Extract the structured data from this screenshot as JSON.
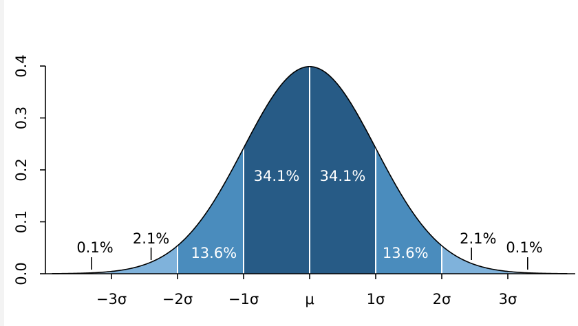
{
  "chart_data": {
    "type": "area",
    "title": "",
    "xlabel": "",
    "ylabel": "",
    "xlim": [
      -3.9,
      3.9
    ],
    "ylim": [
      0,
      0.4
    ],
    "y_ticks": [
      "0.0",
      "0.1",
      "0.2",
      "0.3",
      "0.4"
    ],
    "y_tick_values": [
      0.0,
      0.1,
      0.2,
      0.3,
      0.4
    ],
    "x_ticks": [
      "−3σ",
      "−2σ",
      "−1σ",
      "μ",
      "1σ",
      "2σ",
      "3σ"
    ],
    "x_tick_values": [
      -3,
      -2,
      -1,
      0,
      1,
      2,
      3
    ],
    "curve": "standard normal density",
    "regions": [
      {
        "from": -1,
        "to": 0,
        "label": "34.1%",
        "color": "#275b86"
      },
      {
        "from": 0,
        "to": 1,
        "label": "34.1%",
        "color": "#275b86"
      },
      {
        "from": -2,
        "to": -1,
        "label": "13.6%",
        "color": "#4a8cbd"
      },
      {
        "from": 1,
        "to": 2,
        "label": "13.6%",
        "color": "#4a8cbd"
      },
      {
        "from": -3,
        "to": -2,
        "label": "2.1%",
        "color": "#7fb2db"
      },
      {
        "from": 2,
        "to": 3,
        "label": "2.1%",
        "color": "#7fb2db"
      },
      {
        "from": -3.9,
        "to": -3,
        "label": "0.1%",
        "color": "#a9cdea"
      },
      {
        "from": 3,
        "to": 3.9,
        "label": "0.1%",
        "color": "#a9cdea"
      }
    ],
    "colors": {
      "dark": "#275b86",
      "mid": "#4a8cbd",
      "light": "#7fb2db",
      "lightest": "#a9cdea",
      "curve": "#000000"
    }
  }
}
